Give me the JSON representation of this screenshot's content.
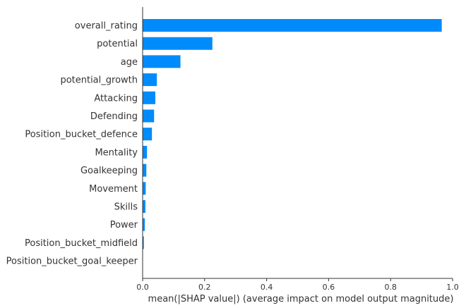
{
  "chart_data": {
    "type": "bar",
    "orientation": "horizontal",
    "categories": [
      "overall_rating",
      "potential",
      "age",
      "potential_growth",
      "Attacking",
      "Defending",
      "Position_bucket_defence",
      "Mentality",
      "Goalkeeping",
      "Movement",
      "Skills",
      "Power",
      "Position_bucket_midfield",
      "Position_bucket_goal_keeper"
    ],
    "values": [
      0.965,
      0.225,
      0.122,
      0.046,
      0.041,
      0.037,
      0.03,
      0.014,
      0.012,
      0.01,
      0.009,
      0.007,
      0.004,
      0.0
    ],
    "xlabel": "mean(|SHAP value|) (average impact on model output magnitude)",
    "ylabel": "",
    "xlim": [
      0,
      1.0
    ],
    "xticks": [
      "0.0",
      "0.2",
      "0.4",
      "0.6",
      "0.8",
      "1.0"
    ],
    "grid": false,
    "bar_color": "#008bfb"
  }
}
